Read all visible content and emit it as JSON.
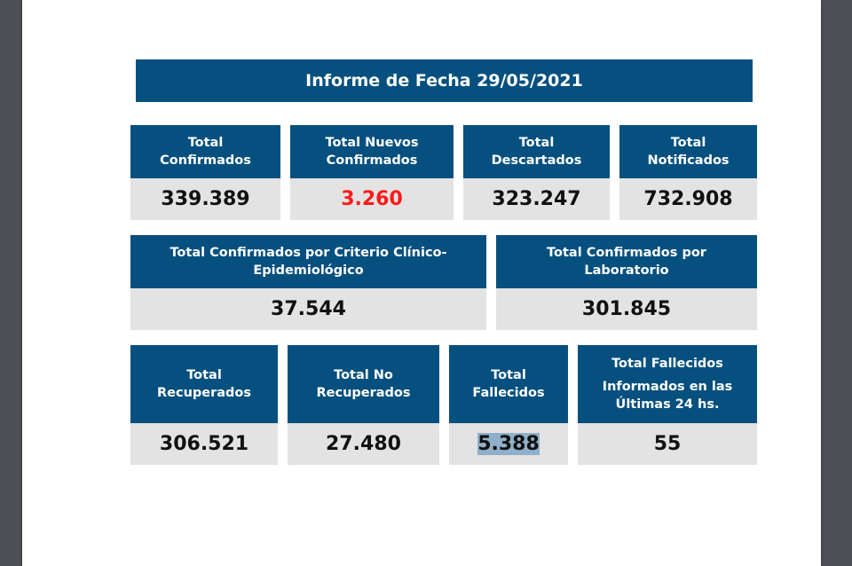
{
  "title": "Informe de Fecha 29/05/2021",
  "row1": [
    {
      "label1": "Total",
      "label2": "Confirmados",
      "value": "339.389"
    },
    {
      "label1": "Total Nuevos",
      "label2": "Confirmados",
      "value": "3.260"
    },
    {
      "label1": "Total",
      "label2": "Descartados",
      "value": "323.247"
    },
    {
      "label1": "Total",
      "label2": "Notificados",
      "value": "732.908"
    }
  ],
  "row2": [
    {
      "label1": "Total Confirmados por Criterio Clínico-",
      "label2": "Epidemiológico",
      "value": "37.544"
    },
    {
      "label1": "Total Confirmados por",
      "label2": "Laboratorio",
      "value": "301.845"
    }
  ],
  "row3": [
    {
      "label1": "Total",
      "label2": "Recuperados",
      "value": "306.521"
    },
    {
      "label1": "Total No",
      "label2": "Recuperados",
      "value": "27.480"
    },
    {
      "label1": "Total",
      "label2": "Fallecidos",
      "value": "5.388"
    },
    {
      "label1": "Total Fallecidos",
      "label2": "Informados en las",
      "label3": "Últimas 24 hs.",
      "value": "55"
    }
  ],
  "colors": {
    "header": "#06507f",
    "highlight": "#ff1a1a"
  }
}
